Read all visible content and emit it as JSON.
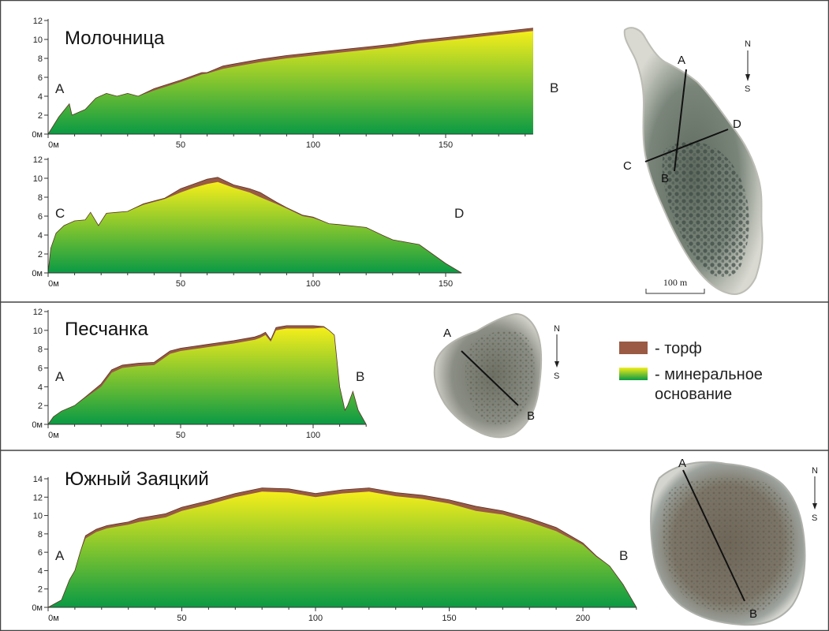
{
  "colors": {
    "peat": "#9a5a44",
    "mineral_top": "#f5ee1a",
    "mineral_bottom": "#0a9a44",
    "panel_border": "#444444"
  },
  "legend": {
    "peat_label": "- торф",
    "mineral_label_1": "- минеральное",
    "mineral_label_2": "основание"
  },
  "scale_bar": {
    "label": "100 m"
  },
  "chart_data": [
    {
      "type": "area",
      "title": "Молочница",
      "start_label": "A",
      "end_label": "B",
      "xlim": [
        0,
        183
      ],
      "ylim": [
        0,
        12
      ],
      "x_ticks": [
        0,
        50,
        100,
        150
      ],
      "x_tick_labels": [
        "0м",
        "50",
        "100",
        "150"
      ],
      "y_ticks": [
        0,
        2,
        4,
        6,
        8,
        10,
        12
      ],
      "y_tick_labels": [
        "0м",
        "2",
        "4",
        "6",
        "8",
        "10",
        "12"
      ],
      "x": [
        0,
        4,
        8,
        9,
        14,
        18,
        22,
        26,
        30,
        34,
        40,
        50,
        58,
        60,
        66,
        70,
        80,
        90,
        100,
        110,
        120,
        130,
        140,
        150,
        160,
        170,
        180,
        183
      ],
      "mineral": [
        0,
        1.8,
        3.2,
        2.0,
        2.6,
        3.8,
        4.3,
        4.0,
        4.3,
        4.0,
        4.6,
        5.5,
        6.3,
        6.4,
        6.9,
        7.1,
        7.6,
        8.0,
        8.3,
        8.6,
        8.9,
        9.2,
        9.6,
        9.9,
        10.2,
        10.5,
        10.8,
        10.9
      ],
      "peat": [
        0,
        0,
        0,
        0,
        0,
        0,
        0,
        0,
        0,
        0,
        0.2,
        0.2,
        0.2,
        0.1,
        0.3,
        0.3,
        0.3,
        0.3,
        0.3,
        0.3,
        0.3,
        0.3,
        0.3,
        0.3,
        0.3,
        0.3,
        0.3,
        0.3
      ]
    },
    {
      "type": "area",
      "title": "",
      "start_label": "C",
      "end_label": "D",
      "xlim": [
        0,
        183
      ],
      "ylim": [
        0,
        12
      ],
      "x_ticks": [
        0,
        50,
        100,
        150
      ],
      "x_tick_labels": [
        "0м",
        "50",
        "100",
        "150"
      ],
      "y_ticks": [
        0,
        2,
        4,
        6,
        8,
        10,
        12
      ],
      "y_tick_labels": [
        "0м",
        "2",
        "4",
        "6",
        "8",
        "10",
        "12"
      ],
      "x": [
        0,
        1,
        3,
        6,
        10,
        14,
        16,
        19,
        22,
        26,
        30,
        36,
        40,
        44,
        50,
        55,
        60,
        64,
        70,
        76,
        80,
        86,
        90,
        96,
        100,
        106,
        110,
        120,
        126,
        130,
        136,
        140,
        145,
        150,
        156
      ],
      "mineral": [
        0,
        2.6,
        4.2,
        5.0,
        5.5,
        5.6,
        6.4,
        5.0,
        6.3,
        6.4,
        6.5,
        7.2,
        7.5,
        7.8,
        8.5,
        9.0,
        9.4,
        9.6,
        9.0,
        8.5,
        8.0,
        7.3,
        6.8,
        6.0,
        5.8,
        5.2,
        5.1,
        4.8,
        4.0,
        3.5,
        3.2,
        3.0,
        2.0,
        1.0,
        0
      ],
      "peat": [
        0,
        0,
        0,
        0,
        0,
        0,
        0,
        0,
        0,
        0,
        0,
        0.1,
        0.1,
        0.1,
        0.4,
        0.4,
        0.5,
        0.5,
        0.3,
        0.4,
        0.5,
        0.2,
        0.1,
        0.1,
        0.1,
        0,
        0,
        0,
        0,
        0,
        0,
        0,
        0,
        0,
        0
      ]
    },
    {
      "type": "area",
      "title": "Песчанка",
      "start_label": "A",
      "end_label": "B",
      "xlim": [
        0,
        120
      ],
      "ylim": [
        0,
        12
      ],
      "x_ticks": [
        0,
        50,
        100
      ],
      "x_tick_labels": [
        "0м",
        "50",
        "100"
      ],
      "y_ticks": [
        0,
        2,
        4,
        6,
        8,
        10,
        12
      ],
      "y_tick_labels": [
        "0м",
        "2",
        "4",
        "6",
        "8",
        "10",
        "12"
      ],
      "x": [
        0,
        2,
        5,
        10,
        14,
        20,
        24,
        28,
        34,
        40,
        46,
        50,
        60,
        70,
        78,
        80,
        82,
        84,
        86,
        88,
        90,
        100,
        104,
        106,
        108,
        110,
        112,
        113,
        115,
        117,
        120
      ],
      "mineral": [
        0,
        0.8,
        1.4,
        2.0,
        2.8,
        4.0,
        5.5,
        6.0,
        6.2,
        6.3,
        7.5,
        7.8,
        8.2,
        8.6,
        9.0,
        9.2,
        9.5,
        8.8,
        10.0,
        10.1,
        10.2,
        10.2,
        10.3,
        10.0,
        9.5,
        4.0,
        1.5,
        2.0,
        3.5,
        1.5,
        0
      ],
      "peat": [
        0,
        0,
        0,
        0,
        0.1,
        0.3,
        0.3,
        0.3,
        0.3,
        0.3,
        0.3,
        0.3,
        0.3,
        0.3,
        0.3,
        0.3,
        0.3,
        0.2,
        0.3,
        0.3,
        0.3,
        0.3,
        0.1,
        0,
        0,
        0,
        0,
        0,
        0,
        0,
        0
      ]
    },
    {
      "type": "area",
      "title": "Южный Заяцкий",
      "start_label": "A",
      "end_label": "B",
      "xlim": [
        0,
        220
      ],
      "ylim": [
        0,
        14
      ],
      "x_ticks": [
        0,
        50,
        100,
        150,
        200
      ],
      "x_tick_labels": [
        "0м",
        "50",
        "100",
        "150",
        "200"
      ],
      "y_ticks": [
        0,
        2,
        4,
        6,
        8,
        10,
        12,
        14
      ],
      "y_tick_labels": [
        "0м",
        "2",
        "4",
        "6",
        "8",
        "10",
        "12",
        "14"
      ],
      "x": [
        0,
        5,
        8,
        10,
        12,
        14,
        18,
        22,
        26,
        30,
        34,
        38,
        44,
        50,
        60,
        70,
        80,
        90,
        100,
        110,
        120,
        130,
        140,
        150,
        160,
        170,
        180,
        190,
        200,
        205,
        210,
        215,
        218,
        220
      ],
      "mineral": [
        0,
        0.8,
        3.0,
        4.0,
        6.0,
        7.5,
        8.2,
        8.6,
        8.8,
        9.0,
        9.3,
        9.5,
        9.8,
        10.5,
        11.2,
        12.0,
        12.6,
        12.5,
        12.0,
        12.4,
        12.6,
        12.1,
        11.8,
        11.3,
        10.5,
        10.1,
        9.3,
        8.3,
        6.8,
        5.5,
        4.5,
        2.5,
        1.0,
        0
      ],
      "peat": [
        0,
        0,
        0,
        0,
        0,
        0.3,
        0.3,
        0.3,
        0.3,
        0.3,
        0.4,
        0.4,
        0.4,
        0.4,
        0.4,
        0.4,
        0.4,
        0.4,
        0.4,
        0.4,
        0.4,
        0.4,
        0.4,
        0.4,
        0.5,
        0.4,
        0.4,
        0.4,
        0.2,
        0.1,
        0,
        0,
        0,
        0
      ]
    }
  ],
  "maps": [
    {
      "id": "molochnitsa",
      "labels": [
        "A",
        "B",
        "C",
        "D"
      ],
      "compass": [
        "N",
        "S"
      ]
    },
    {
      "id": "peschanka",
      "labels": [
        "A",
        "B"
      ],
      "compass": [
        "N",
        "S"
      ]
    },
    {
      "id": "yuzhny",
      "labels": [
        "A",
        "B"
      ],
      "compass": [
        "N",
        "S"
      ]
    }
  ]
}
